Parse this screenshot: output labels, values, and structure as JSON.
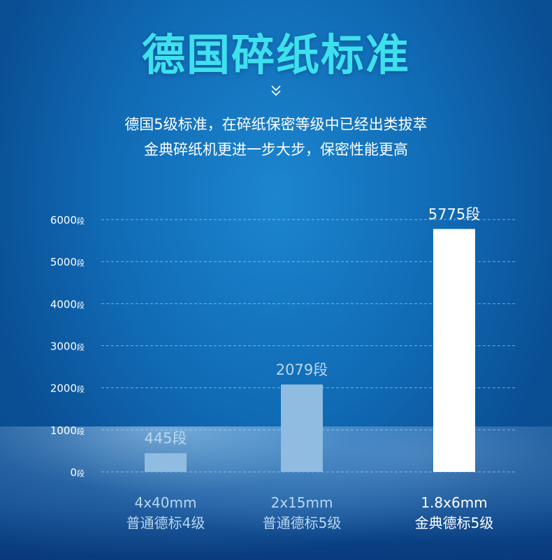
{
  "header": {
    "title": "德国碎纸标准",
    "chevron_icon": "double-chevron-down-icon",
    "subtitle_lines": [
      "德国5级标准，在碎纸保密等级中已经出类拔萃",
      "金典碎纸机更进一步大步，保密性能更高"
    ]
  },
  "colors": {
    "title": "#3ee0ee",
    "bar_normal": "#8fbce0",
    "bar_highlight": "#ffffff",
    "label_normal": "#b9d7f0",
    "label_highlight": "#ffffff"
  },
  "chart_data": {
    "type": "bar",
    "unit": "段",
    "categories": [
      {
        "line1": "4x40mm",
        "line2": "普通德标4级"
      },
      {
        "line1": "2x15mm",
        "line2": "普通德标5级"
      },
      {
        "line1": "1.8x6mm",
        "line2": "金典德标5级"
      }
    ],
    "values": [
      445,
      2079,
      5775
    ],
    "value_labels": [
      "445段",
      "2079段",
      "5775段"
    ],
    "highlight_index": 2,
    "ylim": [
      0,
      6000
    ],
    "yticks": [
      {
        "value": 0,
        "num": "0",
        "unit": "段"
      },
      {
        "value": 1000,
        "num": "1000",
        "unit": "段"
      },
      {
        "value": 2000,
        "num": "2000",
        "unit": "段"
      },
      {
        "value": 3000,
        "num": "3000",
        "unit": "段"
      },
      {
        "value": 4000,
        "num": "4000",
        "unit": "段"
      },
      {
        "value": 5000,
        "num": "5000",
        "unit": "段"
      },
      {
        "value": 6000,
        "num": "6000",
        "unit": "段"
      }
    ],
    "grid": true,
    "grid_style": "dashed"
  }
}
